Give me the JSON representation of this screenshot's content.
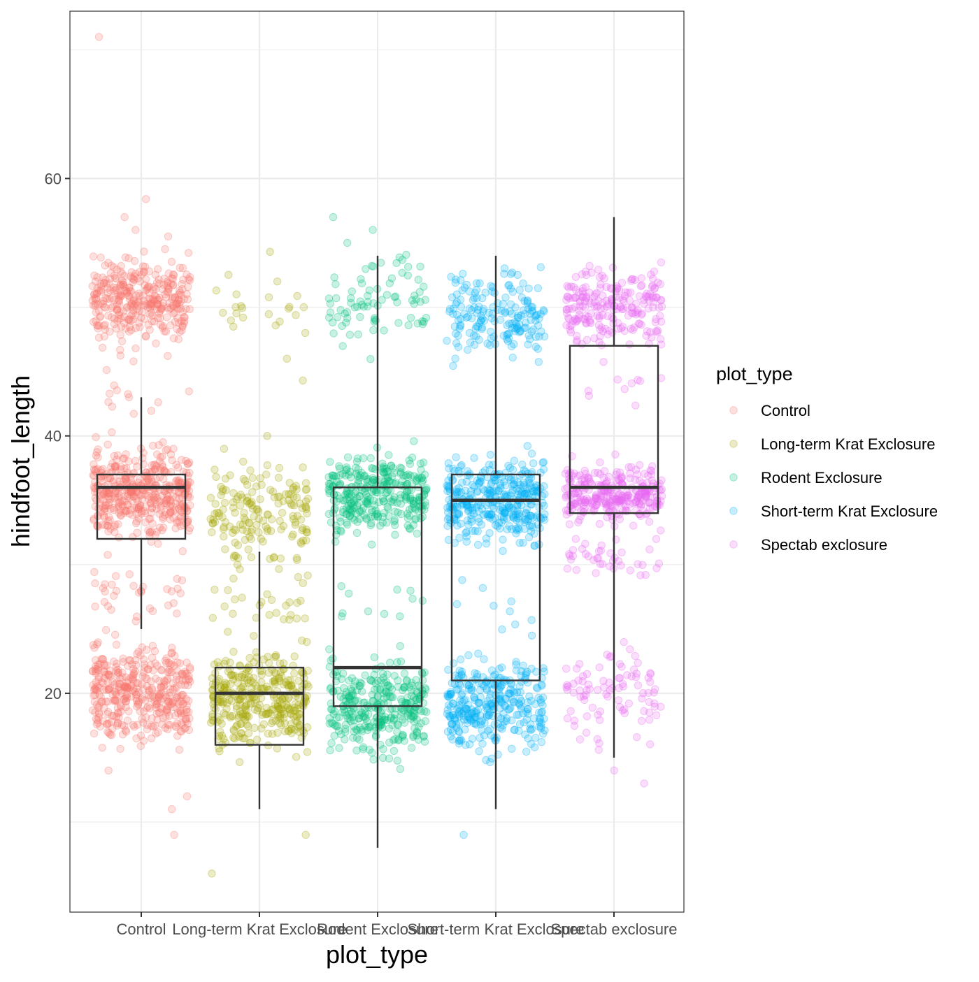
{
  "chart_data": {
    "type": "boxplot-jitter",
    "title": "",
    "xlabel": "plot_type",
    "ylabel": "hindfoot_length",
    "ylim": [
      3,
      73
    ],
    "yticks": [
      20,
      40,
      60
    ],
    "grid": true,
    "legend": {
      "title": "plot_type",
      "position": "right",
      "entries": [
        "Control",
        "Long-term Krat Exclosure",
        "Rodent Exclosure",
        "Short-term Krat Exclosure",
        "Spectab exclosure"
      ]
    },
    "categories": [
      "Control",
      "Long-term Krat Exclosure",
      "Rodent Exclosure",
      "Short-term Krat Exclosure",
      "Spectab exclosure"
    ],
    "colors": [
      "#F8766D",
      "#A3A500",
      "#00BF7D",
      "#00B0F6",
      "#E76BF3"
    ],
    "boxes": [
      {
        "name": "Control",
        "whisker_low": 25,
        "q1": 32,
        "median": 36,
        "q3": 37,
        "whisker_high": 43
      },
      {
        "name": "Long-term Krat Exclosure",
        "whisker_low": 11,
        "q1": 16,
        "median": 20,
        "q3": 22,
        "whisker_high": 31
      },
      {
        "name": "Rodent Exclosure",
        "whisker_low": 8,
        "q1": 19,
        "median": 22,
        "q3": 36,
        "whisker_high": 54
      },
      {
        "name": "Short-term Krat Exclosure",
        "whisker_low": 11,
        "q1": 21,
        "median": 35,
        "q3": 37,
        "whisker_high": 54
      },
      {
        "name": "Spectab exclosure",
        "whisker_low": 15,
        "q1": 34,
        "median": 36,
        "q3": 47,
        "whisker_high": 57
      }
    ],
    "outliers": [
      {
        "name": "Control",
        "values": [
          71,
          58.4,
          57,
          56,
          55.5,
          14,
          12,
          11,
          9
        ]
      },
      {
        "name": "Long-term Krat Exclosure",
        "values": [
          54.3,
          52,
          51,
          50,
          48,
          46,
          44.3,
          40,
          39,
          38,
          37,
          36,
          35,
          34,
          33,
          32,
          9,
          6
        ]
      },
      {
        "name": "Rodent Exclosure",
        "values": [
          57,
          56,
          55
        ]
      },
      {
        "name": "Short-term Krat Exclosure",
        "values": [
          9
        ]
      },
      {
        "name": "Spectab exclosure",
        "values": [
          14,
          13
        ]
      }
    ],
    "point_clusters": [
      {
        "name": "Control",
        "clusters": [
          {
            "center": 50.5,
            "spread": 2.6,
            "count": 340
          },
          {
            "center": 35.5,
            "spread": 2.6,
            "count": 440
          },
          {
            "center": 20,
            "spread": 2.8,
            "count": 400
          },
          {
            "center": 28,
            "spread": 2.0,
            "count": 35
          },
          {
            "center": 43,
            "spread": 1.5,
            "count": 12
          }
        ]
      },
      {
        "name": "Long-term Krat Exclosure",
        "clusters": [
          {
            "center": 19.5,
            "spread": 2.7,
            "count": 340
          },
          {
            "center": 34,
            "spread": 3.2,
            "count": 160
          },
          {
            "center": 27,
            "spread": 2.4,
            "count": 30
          },
          {
            "center": 50,
            "spread": 2.0,
            "count": 18
          }
        ]
      },
      {
        "name": "Rodent Exclosure",
        "clusters": [
          {
            "center": 35.5,
            "spread": 2.4,
            "count": 320
          },
          {
            "center": 19,
            "spread": 2.8,
            "count": 320
          },
          {
            "center": 50.5,
            "spread": 2.4,
            "count": 80
          },
          {
            "center": 26,
            "spread": 3.0,
            "count": 12
          }
        ]
      },
      {
        "name": "Short-term Krat Exclosure",
        "clusters": [
          {
            "center": 35,
            "spread": 2.5,
            "count": 360
          },
          {
            "center": 19,
            "spread": 2.8,
            "count": 320
          },
          {
            "center": 49.5,
            "spread": 2.5,
            "count": 180
          },
          {
            "center": 26,
            "spread": 2.5,
            "count": 10
          }
        ]
      },
      {
        "name": "Spectab exclosure",
        "clusters": [
          {
            "center": 35.5,
            "spread": 1.6,
            "count": 300
          },
          {
            "center": 50,
            "spread": 2.4,
            "count": 220
          },
          {
            "center": 20,
            "spread": 2.8,
            "count": 90
          },
          {
            "center": 30.5,
            "spread": 1.5,
            "count": 40
          },
          {
            "center": 44,
            "spread": 1.5,
            "count": 10
          }
        ]
      }
    ]
  }
}
